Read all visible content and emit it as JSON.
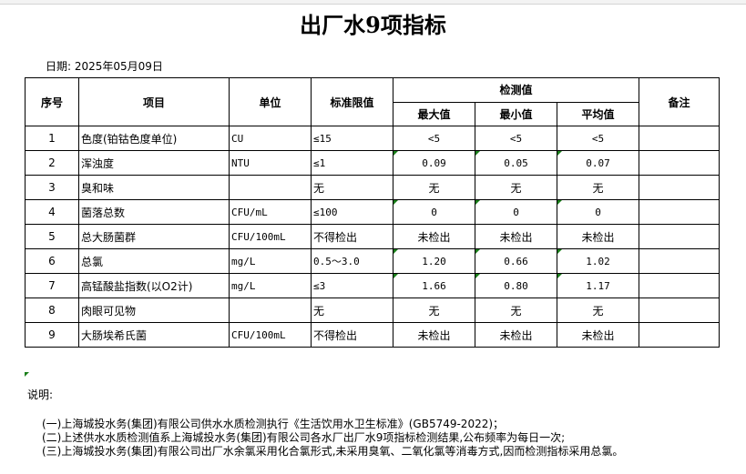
{
  "title": "出厂水9项指标",
  "date": "日期: 2025年05月09日",
  "headers": {
    "seq": "序号",
    "item": "项目",
    "unit": "单位",
    "limit": "标准限值",
    "measured": "检测值",
    "max": "最大值",
    "min": "最小值",
    "avg": "平均值",
    "remark": "备注"
  },
  "rows": [
    {
      "seq": "1",
      "item": "色度(铂钴色度单位)",
      "unit": "CU",
      "limit": "≤15",
      "max": "<5",
      "min": "<5",
      "avg": "<5",
      "remark": ""
    },
    {
      "seq": "2",
      "item": "浑浊度",
      "unit": "NTU",
      "limit": "≤1",
      "max": "0.09",
      "min": "0.05",
      "avg": "0.07",
      "remark": ""
    },
    {
      "seq": "3",
      "item": "臭和味",
      "unit": "",
      "limit": "无",
      "max": "无",
      "min": "无",
      "avg": "无",
      "remark": ""
    },
    {
      "seq": "4",
      "item": "菌落总数",
      "unit": "CFU/mL",
      "limit": "≤100",
      "max": "0",
      "min": "0",
      "avg": "0",
      "remark": ""
    },
    {
      "seq": "5",
      "item": "总大肠菌群",
      "unit": "CFU/100mL",
      "limit": "不得检出",
      "max": "未检出",
      "min": "未检出",
      "avg": "未检出",
      "remark": ""
    },
    {
      "seq": "6",
      "item": "总氯",
      "unit": "mg/L",
      "limit": "0.5～3.0",
      "max": "1.20",
      "min": "0.66",
      "avg": "1.02",
      "remark": ""
    },
    {
      "seq": "7",
      "item": "高锰酸盐指数(以O2计)",
      "unit": "mg/L",
      "limit": "≤3",
      "max": "1.66",
      "min": "0.80",
      "avg": "1.17",
      "remark": ""
    },
    {
      "seq": "8",
      "item": "肉眼可见物",
      "unit": "",
      "limit": "无",
      "max": "无",
      "min": "无",
      "avg": "无",
      "remark": ""
    },
    {
      "seq": "9",
      "item": "大肠埃希氏菌",
      "unit": "CFU/100mL",
      "limit": "不得检出",
      "max": "未检出",
      "min": "未检出",
      "avg": "未检出",
      "remark": ""
    }
  ],
  "notes": {
    "label": "说明:",
    "items": [
      "(一)上海城投水务(集团)有限公司供水水质检测执行《生活饮用水卫生标准》(GB5749-2022)；",
      "(二)上述供水水质检测值系上海城投水务(集团)有限公司各水厂出厂水9项指标检测结果,公布频率为每日一次;",
      "(三)上海城投水务(集团)有限公司出厂水余氯采用化合氯形式,未采用臭氧、二氧化氯等消毒方式,因而检测指标采用总氯。"
    ]
  },
  "colors": {
    "indicator": "#1a7f1a"
  }
}
